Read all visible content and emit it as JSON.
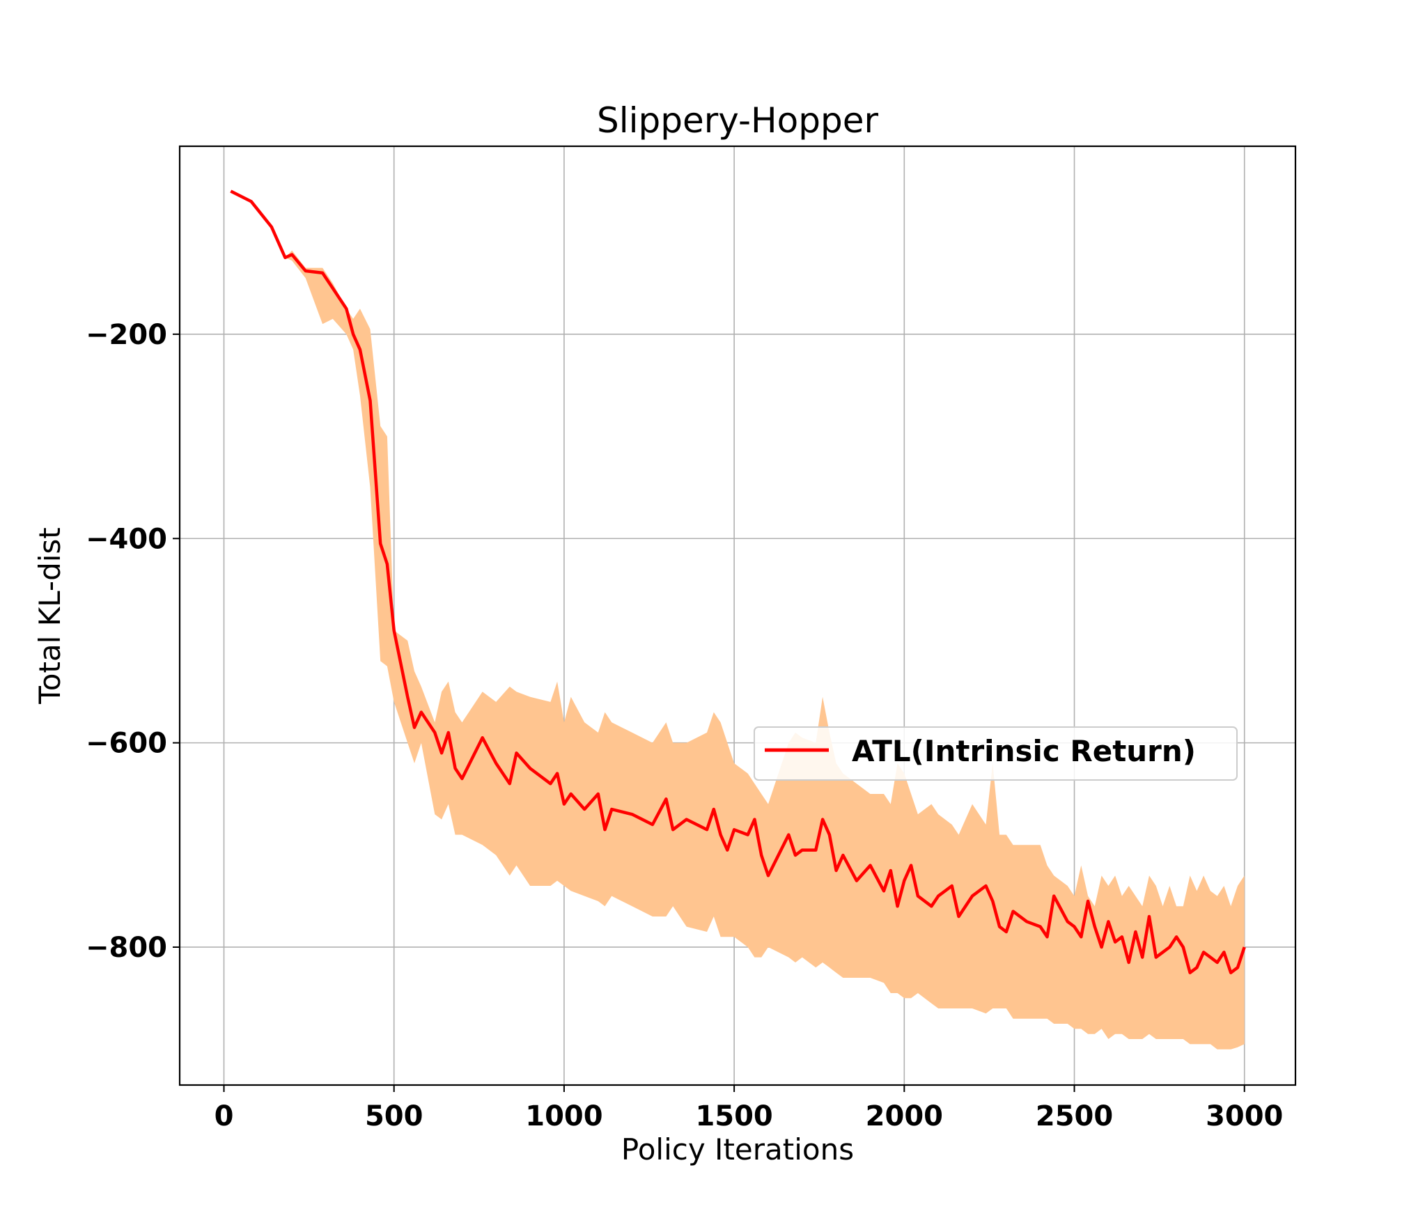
{
  "chart_data": {
    "type": "line",
    "title": "Slippery-Hopper",
    "xlabel": "Policy Iterations",
    "ylabel": "Total KL-dist",
    "xlim": [
      -130,
      3150
    ],
    "ylim": [
      -935,
      -16
    ],
    "xticks": [
      0,
      500,
      1000,
      1500,
      2000,
      2500,
      3000
    ],
    "xtick_labels": [
      "0",
      "500",
      "1000",
      "1500",
      "2000",
      "2500",
      "3000"
    ],
    "yticks": [
      -200,
      -400,
      -600,
      -800
    ],
    "ytick_labels": [
      "−200",
      "−400",
      "−600",
      "−800"
    ],
    "grid": true,
    "legend_position": "center-right",
    "colors": {
      "line": "#ff0000",
      "band": "#ffc590"
    },
    "series": [
      {
        "name": "ATL(Intrinsic Return)",
        "x": [
          20,
          80,
          140,
          180,
          200,
          240,
          290,
          320,
          360,
          380,
          400,
          430,
          460,
          480,
          500,
          540,
          560,
          580,
          620,
          640,
          660,
          680,
          700,
          760,
          800,
          840,
          860,
          900,
          960,
          980,
          1000,
          1020,
          1060,
          1100,
          1120,
          1140,
          1200,
          1260,
          1300,
          1320,
          1360,
          1420,
          1440,
          1460,
          1480,
          1500,
          1540,
          1560,
          1580,
          1600,
          1660,
          1680,
          1700,
          1740,
          1760,
          1780,
          1800,
          1820,
          1860,
          1900,
          1940,
          1960,
          1980,
          2000,
          2020,
          2040,
          2080,
          2100,
          2140,
          2160,
          2200,
          2240,
          2260,
          2280,
          2300,
          2320,
          2360,
          2400,
          2420,
          2440,
          2480,
          2500,
          2520,
          2540,
          2560,
          2580,
          2600,
          2620,
          2640,
          2660,
          2680,
          2700,
          2720,
          2740,
          2760,
          2780,
          2800,
          2820,
          2840,
          2860,
          2880,
          2900,
          2920,
          2940,
          2960,
          2980,
          3000
        ],
        "y": [
          -60,
          -70,
          -95,
          -125,
          -122,
          -138,
          -140,
          -155,
          -175,
          -200,
          -215,
          -265,
          -405,
          -425,
          -490,
          -555,
          -585,
          -570,
          -590,
          -610,
          -590,
          -625,
          -635,
          -595,
          -620,
          -640,
          -610,
          -625,
          -640,
          -630,
          -660,
          -650,
          -665,
          -650,
          -685,
          -665,
          -670,
          -680,
          -655,
          -685,
          -675,
          -685,
          -665,
          -690,
          -705,
          -685,
          -690,
          -675,
          -710,
          -730,
          -690,
          -710,
          -705,
          -705,
          -675,
          -690,
          -725,
          -710,
          -735,
          -720,
          -745,
          -725,
          -760,
          -735,
          -720,
          -750,
          -760,
          -750,
          -740,
          -770,
          -750,
          -740,
          -755,
          -780,
          -785,
          -765,
          -775,
          -780,
          -790,
          -750,
          -775,
          -780,
          -790,
          -755,
          -780,
          -800,
          -775,
          -795,
          -790,
          -815,
          -785,
          -810,
          -770,
          -810,
          -805,
          -800,
          -790,
          -800,
          -825,
          -820,
          -805,
          -810,
          -815,
          -805,
          -825,
          -820,
          -800
        ],
        "band_upper": [
          -60,
          -70,
          -95,
          -125,
          -118,
          -135,
          -135,
          -150,
          -175,
          -185,
          -175,
          -195,
          -290,
          -300,
          -490,
          -500,
          -530,
          -545,
          -580,
          -550,
          -540,
          -570,
          -580,
          -550,
          -560,
          -545,
          -550,
          -555,
          -560,
          -540,
          -580,
          -555,
          -580,
          -590,
          -570,
          -580,
          -590,
          -600,
          -580,
          -600,
          -600,
          -590,
          -570,
          -580,
          -600,
          -620,
          -630,
          -640,
          -650,
          -660,
          -600,
          -590,
          -595,
          -600,
          -555,
          -590,
          -620,
          -630,
          -640,
          -650,
          -650,
          -660,
          -620,
          -630,
          -650,
          -670,
          -660,
          -670,
          -680,
          -690,
          -660,
          -680,
          -620,
          -690,
          -690,
          -700,
          -700,
          -700,
          -720,
          -730,
          -740,
          -750,
          -720,
          -750,
          -760,
          -730,
          -740,
          -730,
          -750,
          -740,
          -750,
          -760,
          -730,
          -740,
          -760,
          -740,
          -760,
          -760,
          -730,
          -745,
          -730,
          -745,
          -750,
          -740,
          -760,
          -740,
          -730
        ],
        "band_lower": [
          -60,
          -70,
          -95,
          -125,
          -128,
          -145,
          -190,
          -185,
          -200,
          -215,
          -260,
          -350,
          -520,
          -525,
          -560,
          -600,
          -620,
          -600,
          -670,
          -675,
          -660,
          -690,
          -690,
          -700,
          -710,
          -730,
          -720,
          -740,
          -740,
          -735,
          -740,
          -745,
          -750,
          -755,
          -760,
          -750,
          -760,
          -770,
          -770,
          -760,
          -780,
          -785,
          -770,
          -790,
          -790,
          -790,
          -800,
          -810,
          -810,
          -800,
          -810,
          -815,
          -810,
          -820,
          -815,
          -820,
          -825,
          -830,
          -830,
          -830,
          -835,
          -845,
          -845,
          -850,
          -850,
          -845,
          -855,
          -860,
          -860,
          -860,
          -860,
          -865,
          -860,
          -860,
          -860,
          -870,
          -870,
          -870,
          -870,
          -875,
          -875,
          -880,
          -880,
          -885,
          -885,
          -880,
          -890,
          -885,
          -885,
          -890,
          -890,
          -890,
          -885,
          -890,
          -890,
          -890,
          -890,
          -890,
          -895,
          -895,
          -895,
          -895,
          -900,
          -900,
          -900,
          -898,
          -895
        ]
      }
    ]
  }
}
